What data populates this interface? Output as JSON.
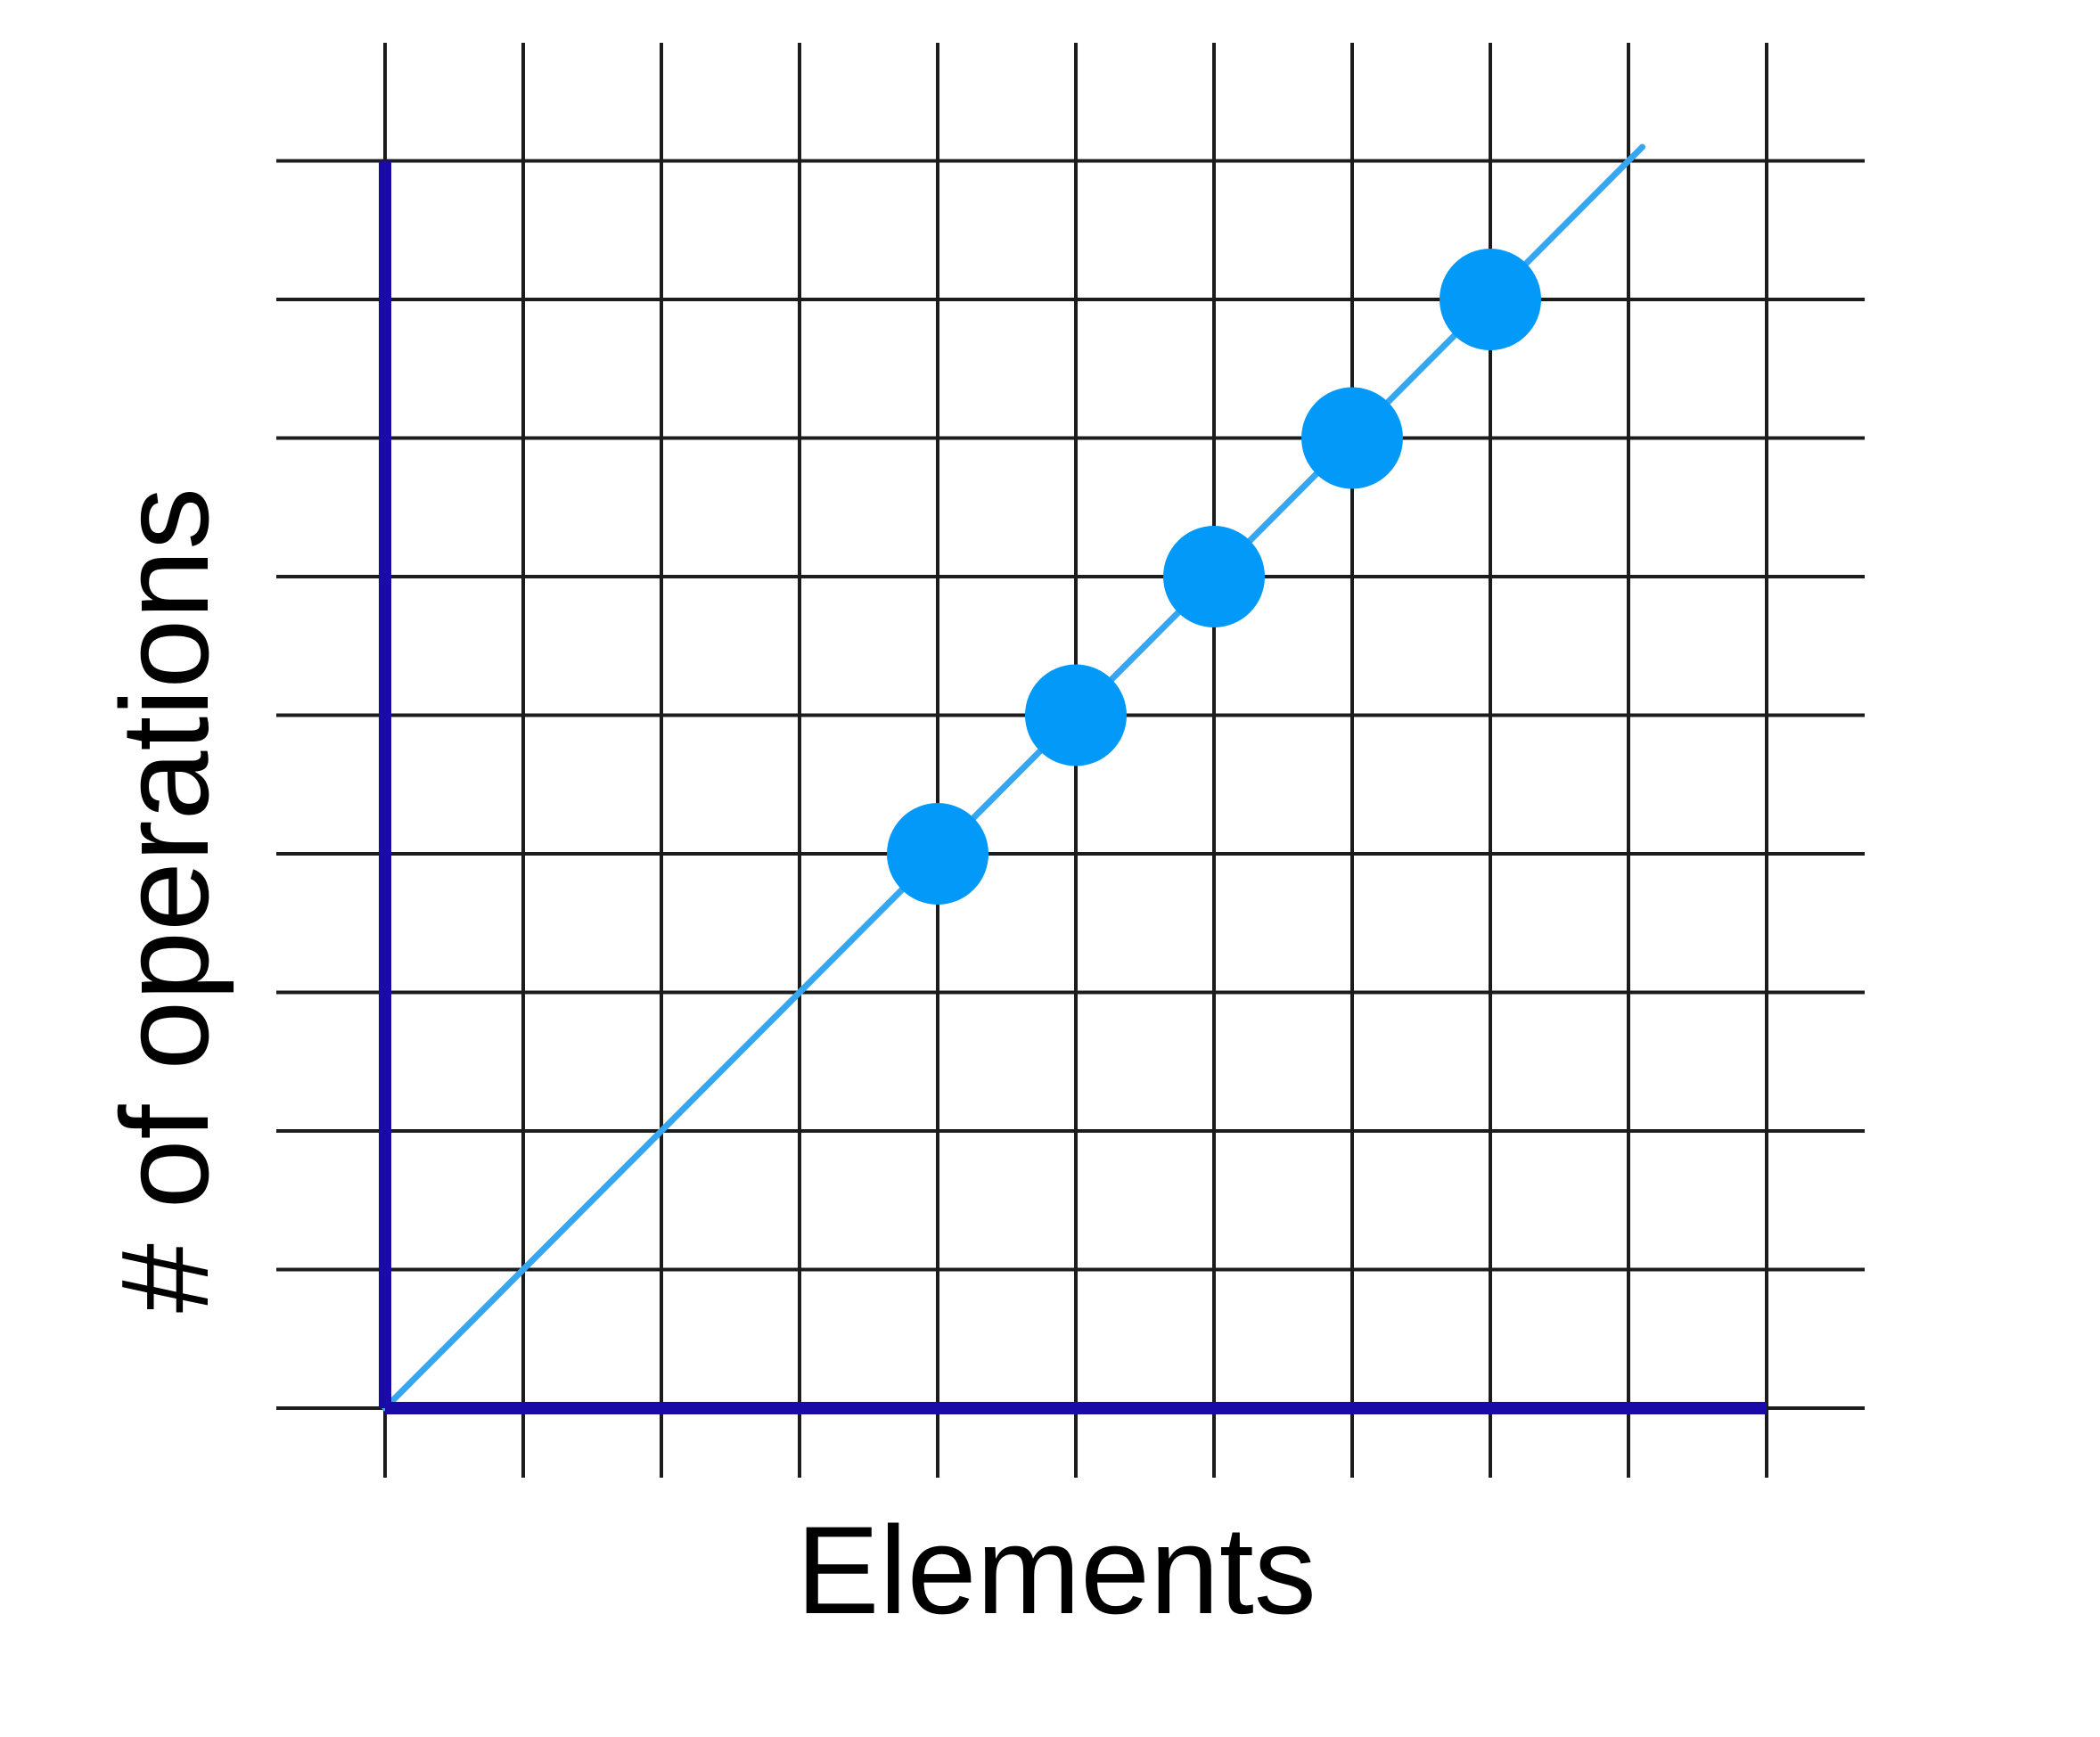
{
  "chart_data": {
    "type": "scatter",
    "xlabel": "Elements",
    "ylabel": "# of operations",
    "xlim": [
      0,
      10
    ],
    "ylim": [
      0,
      9
    ],
    "grid": true,
    "tick_labels_shown": false,
    "series": [
      {
        "points": [
          [
            4,
            4
          ],
          [
            5,
            5
          ],
          [
            6,
            6
          ],
          [
            7,
            7
          ],
          [
            8,
            8
          ]
        ]
      }
    ],
    "trend_line": {
      "from": [
        0,
        0
      ],
      "to": [
        9.1,
        9.1
      ]
    },
    "colors": {
      "axis": "#1a0aa8",
      "grid": "#1c1c1c",
      "point": "#0299f8",
      "trend": "#36a6f0"
    }
  }
}
